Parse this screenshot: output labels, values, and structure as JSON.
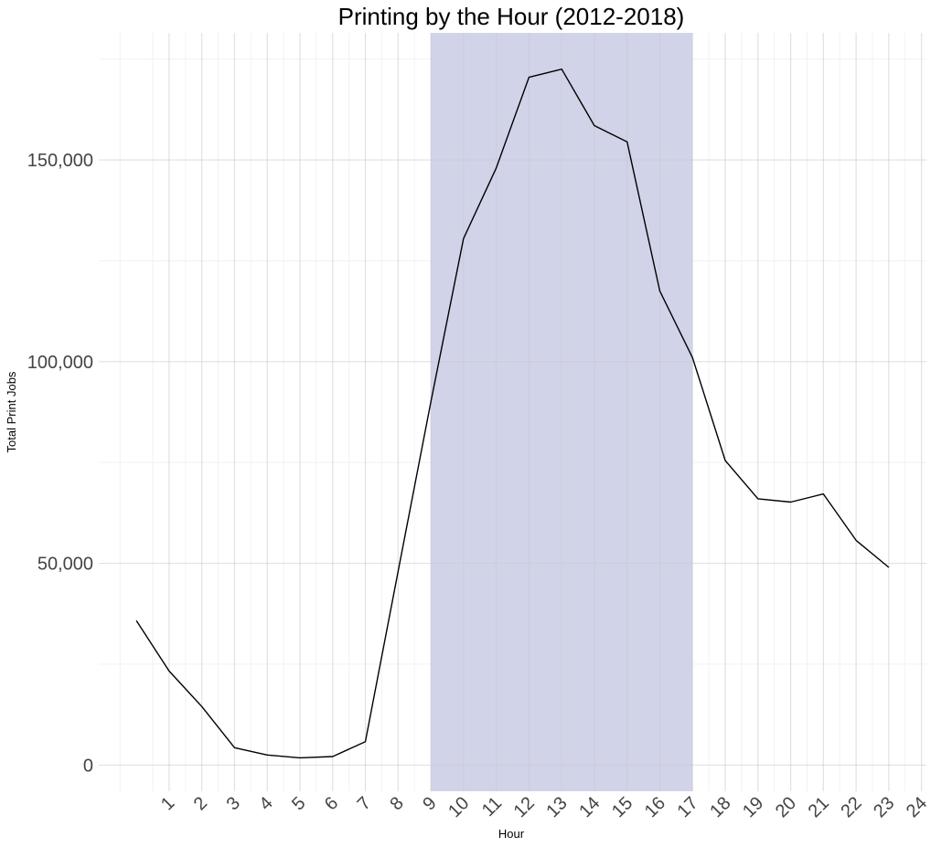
{
  "chart_data": {
    "type": "line",
    "title": "Printing by the Hour (2012-2018)",
    "xlabel": "Hour",
    "ylabel": "Total Print Jobs",
    "x": [
      0,
      1,
      2,
      3,
      4,
      5,
      6,
      7,
      8,
      9,
      10,
      11,
      12,
      13,
      14,
      15,
      16,
      17,
      18,
      19,
      20,
      21,
      22,
      23
    ],
    "series": [
      {
        "values": [
          35800,
          23300,
          14500,
          4300,
          2500,
          1800,
          2100,
          5800,
          48000,
          90000,
          130500,
          148000,
          170500,
          172500,
          158500,
          154500,
          117500,
          101000,
          75500,
          66000,
          65200,
          67200,
          55700,
          49000
        ]
      }
    ],
    "xticks": [
      "1",
      "2",
      "3",
      "4",
      "5",
      "6",
      "7",
      "8",
      "9",
      "10",
      "11",
      "12",
      "13",
      "14",
      "15",
      "16",
      "17",
      "18",
      "19",
      "20",
      "21",
      "22",
      "23",
      "24"
    ],
    "yticks": [
      0,
      50000,
      100000,
      150000
    ],
    "ytick_labels": [
      "0",
      "50,000",
      "100,000",
      "150,000"
    ],
    "xlim": [
      -1.15,
      24.15
    ],
    "ylim": [
      -6500,
      181500
    ],
    "highlight_band": {
      "x_start": 9,
      "x_end": 17,
      "color": "#d1d3e8"
    },
    "line_color": "#000000",
    "grid": true,
    "legend": "none"
  }
}
